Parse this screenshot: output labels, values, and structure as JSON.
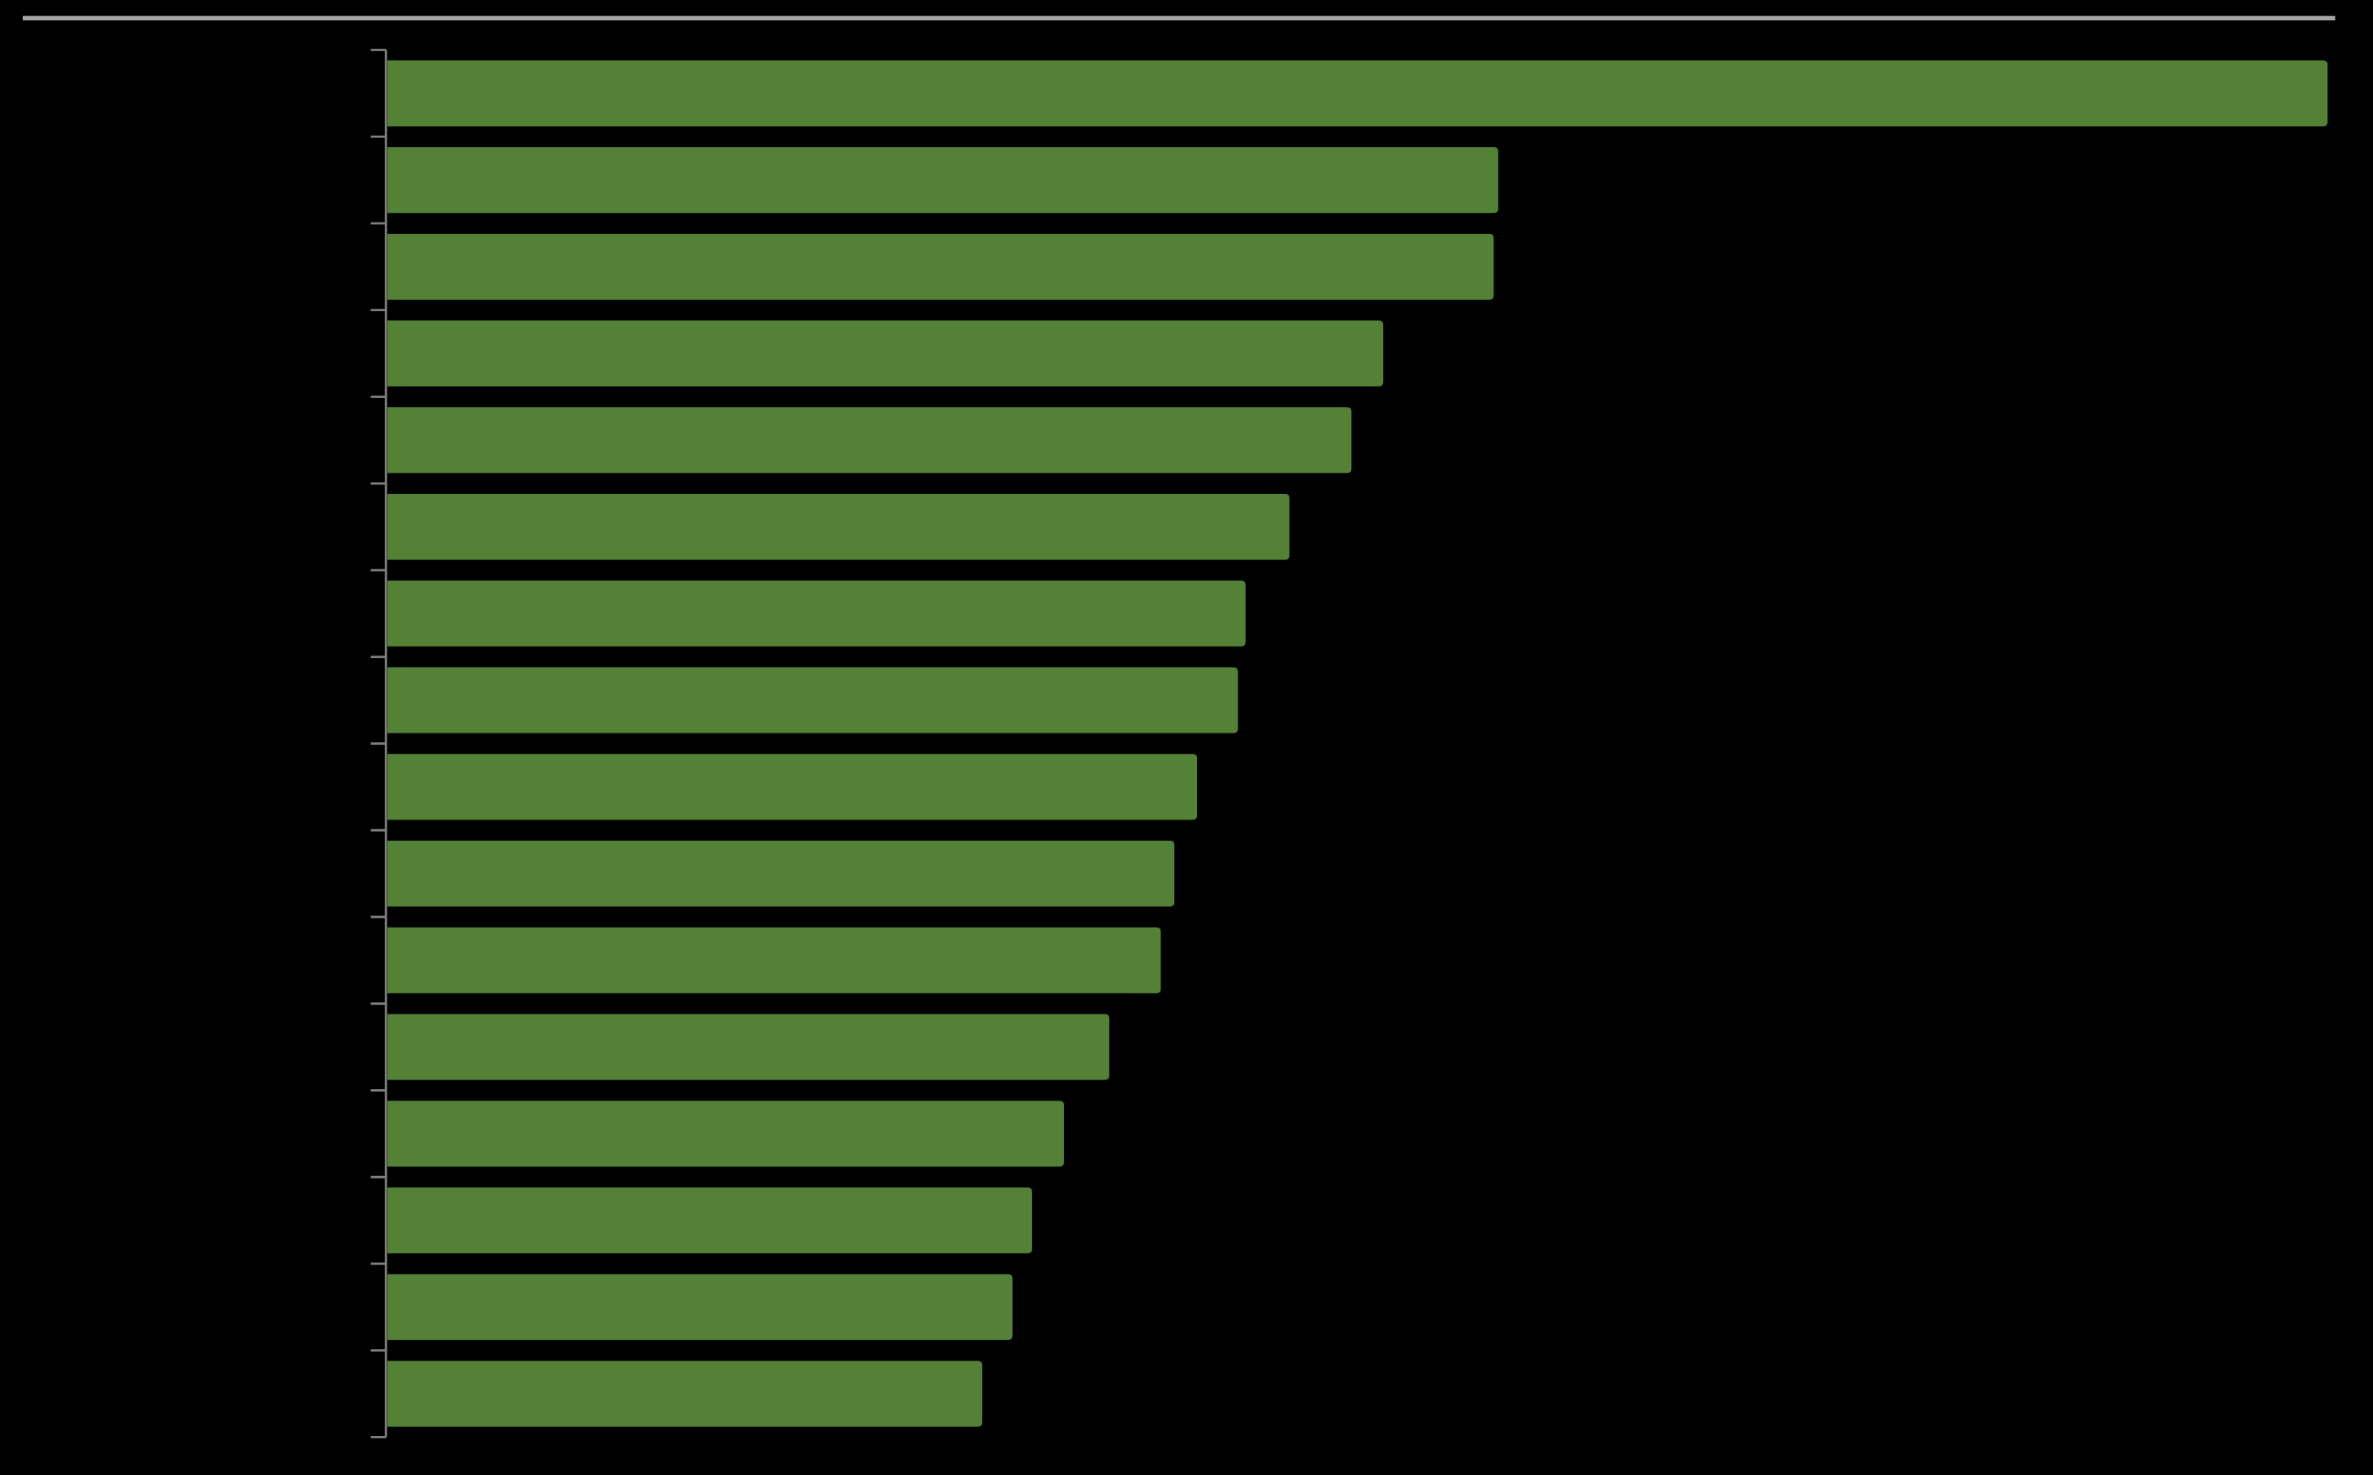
{
  "chart_data": {
    "type": "bar",
    "orientation": "horizontal",
    "categories": [
      null,
      null,
      null,
      null,
      null,
      null,
      null,
      null,
      null,
      null,
      null,
      null,
      null,
      null,
      null,
      null
    ],
    "values": [
      1282,
      734,
      731,
      658,
      637,
      596,
      567,
      562,
      535,
      520,
      511,
      477,
      447,
      426,
      413,
      393
    ],
    "color": "#538135",
    "xlim": [
      0,
      1282
    ]
  }
}
